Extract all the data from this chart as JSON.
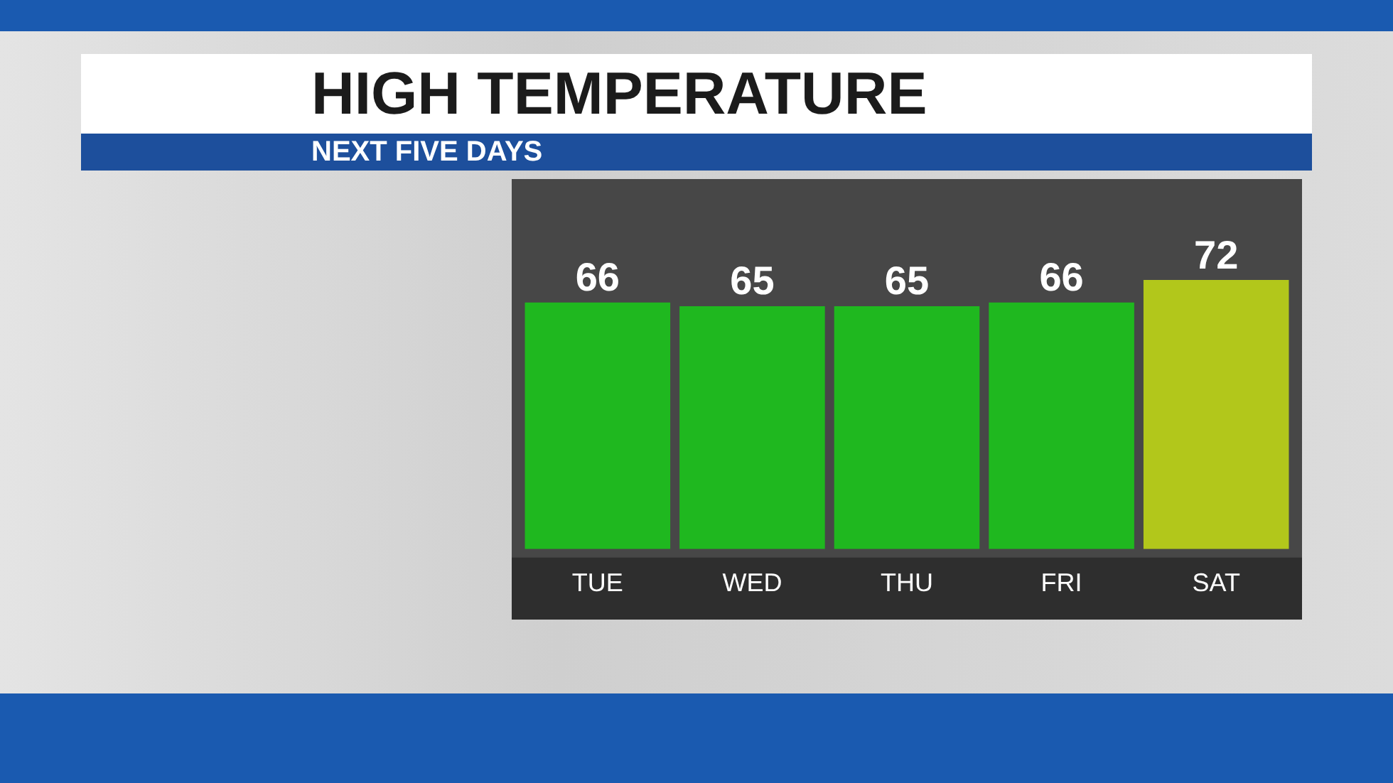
{
  "chart_data": {
    "type": "bar",
    "title": "HIGH TEMPERATURE",
    "subtitle": "NEXT FIVE DAYS",
    "categories": [
      "TUE",
      "WED",
      "THU",
      "FRI",
      "SAT"
    ],
    "values": [
      66,
      65,
      65,
      66,
      72
    ],
    "colors": [
      "#1fb81f",
      "#1fb81f",
      "#1fb81f",
      "#1fb81f",
      "#b2c71b"
    ],
    "data_labels": true,
    "grid": false,
    "legend": false
  }
}
